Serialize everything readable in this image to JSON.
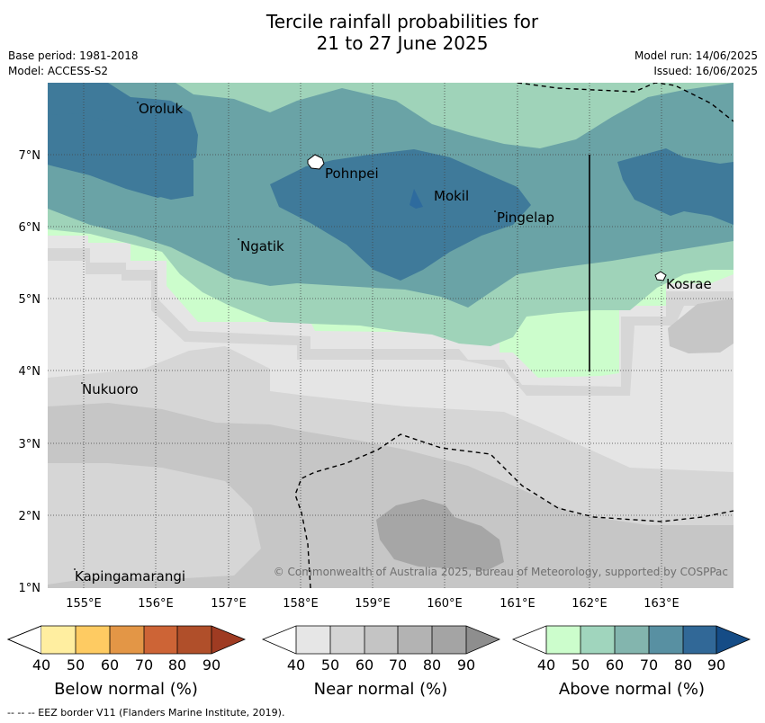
{
  "title": {
    "line1": "Tercile rainfall probabilities for",
    "line2": "21 to 27 June 2025"
  },
  "meta": {
    "base_period": "Base period: 1981-2018",
    "model": "Model: ACCESS-S2",
    "model_run": "Model run: 14/06/2025",
    "issued": "Issued: 16/06/2025"
  },
  "map": {
    "lon_ticks": [
      "155°E",
      "156°E",
      "157°E",
      "158°E",
      "159°E",
      "160°E",
      "161°E",
      "162°E",
      "163°E"
    ],
    "lat_ticks": [
      "7°N",
      "6°N",
      "5°N",
      "4°N",
      "3°N",
      "2°N",
      "1°N"
    ],
    "places": {
      "oroluk": "Oroluk",
      "pohnpei": "Pohnpei",
      "mokil": "Mokil",
      "pingelap": "Pingelap",
      "ngatik": "Ngatik",
      "kosrae": "Kosrae",
      "nukuoro": "Nukuoro",
      "kapingamarangi": "Kapingamarangi"
    },
    "copyright": "© Commonwealth of Australia 2025, Bureau of Meteorology, supported by COSPPac",
    "colors": {
      "near_40": "#e5e5e5",
      "near_50": "#d6d6d6",
      "near_60": "#c6c6c6",
      "near_70": "#b3b3b3",
      "near_80": "#a6a6a6",
      "above_40": "#ccfdcc",
      "above_50": "#9fd3b9",
      "above_60": "#6aa3a6",
      "above_70": "#3f7a9a"
    }
  },
  "colorbars": {
    "below": {
      "title": "Below normal (%)",
      "ticks": [
        "40",
        "50",
        "60",
        "70",
        "80",
        "90"
      ],
      "colors": [
        "#ffffff",
        "#ffeea0",
        "#fecb62",
        "#e39646",
        "#cd6436",
        "#b04f2a",
        "#9f3b22"
      ]
    },
    "near": {
      "title": "Near normal (%)",
      "ticks": [
        "40",
        "50",
        "60",
        "70",
        "80",
        "90"
      ],
      "colors": [
        "#ffffff",
        "#e6e6e6",
        "#d4d4d4",
        "#c4c4c4",
        "#b3b3b3",
        "#a4a4a4",
        "#8e8e8e"
      ]
    },
    "above": {
      "title": "Above normal (%)",
      "ticks": [
        "40",
        "50",
        "60",
        "70",
        "80",
        "90"
      ],
      "colors": [
        "#ffffff",
        "#ccfdcc",
        "#a0d5bd",
        "#83b5ae",
        "#5890a2",
        "#316897",
        "#154c86"
      ]
    }
  },
  "footnote": "--  --  -- EEZ border V11 (Flanders Marine Institute, 2019)."
}
